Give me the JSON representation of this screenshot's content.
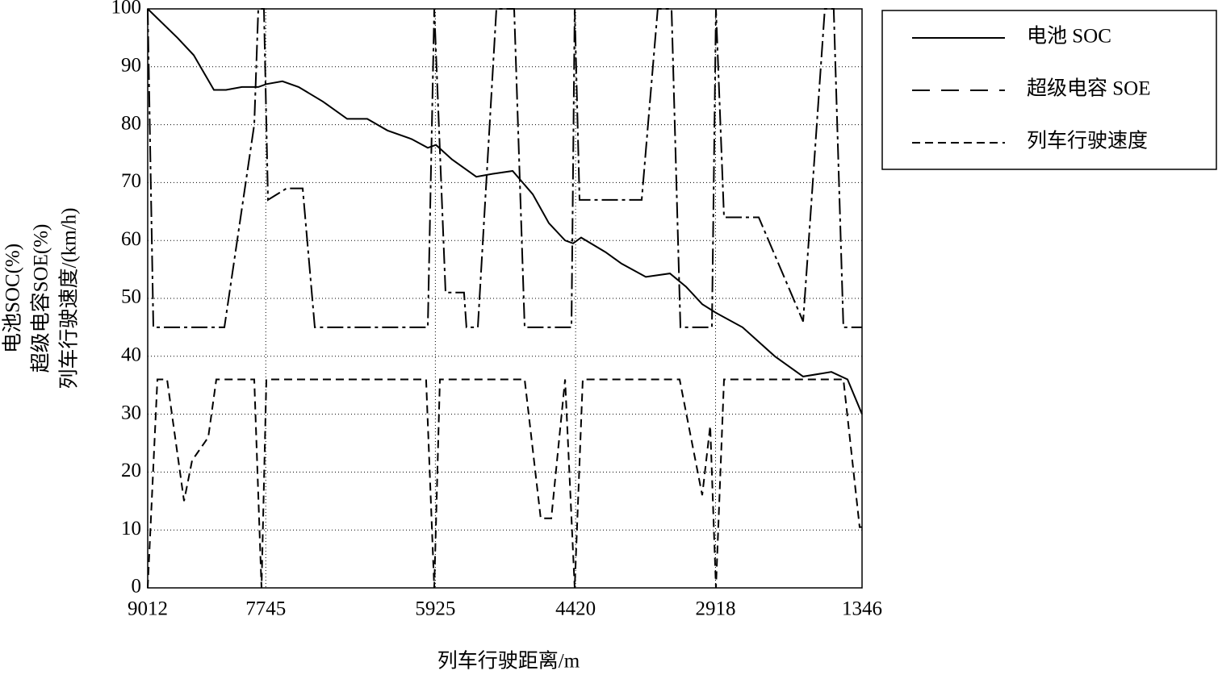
{
  "chart_data": {
    "type": "line",
    "xlabel": "列车行驶距离/m",
    "ylabel": [
      "电池SOC(%)",
      "超级电容SOE(%)",
      "列车行驶速度/(km/h)"
    ],
    "xlim": [
      9012,
      1346
    ],
    "xticks": [
      9012,
      7745,
      5925,
      4420,
      2918,
      1346
    ],
    "ylim": [
      0,
      100
    ],
    "yticks": [
      0,
      10,
      20,
      30,
      40,
      50,
      60,
      70,
      80,
      90,
      100
    ],
    "grid": true,
    "legend": "outside-right",
    "series": [
      {
        "name": "电池 SOC",
        "color": "#000000",
        "dash": "none",
        "x": [
          9012,
          8692,
          8518,
          8302,
          8172,
          8001,
          7825,
          7739,
          7566,
          7392,
          7132,
          6872,
          6656,
          6439,
          6179,
          6006,
          5919,
          5746,
          5486,
          5313,
          5096,
          4880,
          4707,
          4533,
          4447,
          4360,
          4100,
          3927,
          3667,
          3408,
          3234,
          3061,
          2914,
          2628,
          2282,
          1978,
          1675,
          1502,
          1346
        ],
        "values": [
          100,
          95,
          92,
          86,
          86,
          86.5,
          86.5,
          87,
          87.5,
          86.5,
          84,
          81,
          81,
          79,
          77.5,
          76,
          76.5,
          74,
          71,
          71.5,
          72,
          68,
          63,
          60,
          59.5,
          60.5,
          58,
          56,
          53.7,
          54.3,
          52,
          49,
          47.5,
          45,
          40,
          36.5,
          37.3,
          36,
          30
        ]
      },
      {
        "name": "超级电容 SOE",
        "color": "#000000",
        "dash": "20,5,4,5",
        "x": [
          9012,
          8951,
          8189,
          7869,
          7825,
          7765,
          7721,
          7522,
          7349,
          7219,
          6006,
          5937,
          5816,
          5617,
          5591,
          5469,
          5270,
          5079,
          4967,
          4464,
          4430,
          4378,
          3711,
          3538,
          3390,
          3295,
          2957,
          2914,
          2827,
          2455,
          1978,
          1745,
          1650,
          1546,
          1346
        ],
        "values": [
          100,
          45,
          45,
          80,
          100,
          100,
          67,
          69,
          69,
          45,
          45,
          100,
          51,
          51,
          45,
          45,
          100,
          100,
          45,
          45,
          100,
          67,
          67,
          100,
          100,
          45,
          45,
          100,
          64,
          64,
          46,
          100,
          100,
          45,
          45
        ]
      },
      {
        "name": "列车行驶速度",
        "color": "#000000",
        "dash": "10,6",
        "x": [
          9012,
          8908,
          8804,
          8622,
          8536,
          8362,
          8276,
          7869,
          7791,
          7739,
          6024,
          5937,
          5876,
          4967,
          4794,
          4681,
          4533,
          4430,
          4343,
          3304,
          3061,
          2975,
          2914,
          2827,
          1546,
          1372,
          1346
        ],
        "values": [
          0,
          36,
          36,
          15,
          22,
          26,
          36,
          36,
          0,
          36,
          36,
          0,
          36,
          36,
          12,
          12,
          36,
          0,
          36,
          36,
          16,
          28,
          0,
          36,
          36,
          10.5,
          10.5
        ]
      }
    ]
  }
}
